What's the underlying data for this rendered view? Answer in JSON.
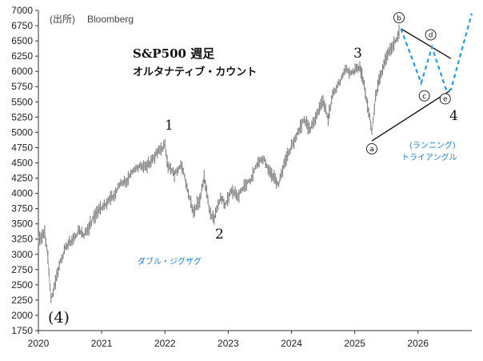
{
  "source_label": "(出所)",
  "source_name": "Bloomberg",
  "chart_data": {
    "type": "line",
    "title": "S&P500 週足",
    "subtitle": "オルタナティブ・カウント",
    "x_ticks": [
      "2020",
      "2021",
      "2022",
      "2023",
      "2024",
      "2025",
      "2026"
    ],
    "y_ticks": [
      1750,
      2000,
      2250,
      2500,
      2750,
      3000,
      3250,
      3500,
      3750,
      4000,
      4250,
      4500,
      4750,
      5000,
      5250,
      5500,
      5750,
      6000,
      6250,
      6500,
      6750,
      7000
    ],
    "xlim": [
      2020.0,
      2026.85
    ],
    "ylim": [
      1750,
      7000
    ],
    "series": [
      {
        "values": [
          [
            2020.0,
            3230
          ],
          [
            2020.1,
            3370
          ],
          [
            2020.15,
            2950
          ],
          [
            2020.2,
            2240
          ],
          [
            2020.25,
            2480
          ],
          [
            2020.35,
            2900
          ],
          [
            2020.45,
            3150
          ],
          [
            2020.55,
            3250
          ],
          [
            2020.65,
            3400
          ],
          [
            2020.72,
            3320
          ],
          [
            2020.8,
            3450
          ],
          [
            2020.9,
            3650
          ],
          [
            2021.0,
            3780
          ],
          [
            2021.1,
            3880
          ],
          [
            2021.2,
            3960
          ],
          [
            2021.3,
            4180
          ],
          [
            2021.4,
            4200
          ],
          [
            2021.5,
            4350
          ],
          [
            2021.6,
            4470
          ],
          [
            2021.7,
            4430
          ],
          [
            2021.8,
            4560
          ],
          [
            2021.9,
            4690
          ],
          [
            2022.0,
            4790
          ],
          [
            2022.05,
            4450
          ],
          [
            2022.15,
            4300
          ],
          [
            2022.25,
            4500
          ],
          [
            2022.35,
            4100
          ],
          [
            2022.45,
            3700
          ],
          [
            2022.55,
            3900
          ],
          [
            2022.62,
            4280
          ],
          [
            2022.72,
            3650
          ],
          [
            2022.78,
            3580
          ],
          [
            2022.88,
            3950
          ],
          [
            2022.95,
            3830
          ],
          [
            2023.05,
            4050
          ],
          [
            2023.15,
            3950
          ],
          [
            2023.25,
            4100
          ],
          [
            2023.35,
            4200
          ],
          [
            2023.45,
            4450
          ],
          [
            2023.55,
            4580
          ],
          [
            2023.65,
            4350
          ],
          [
            2023.8,
            4150
          ],
          [
            2023.9,
            4550
          ],
          [
            2024.0,
            4770
          ],
          [
            2024.1,
            5000
          ],
          [
            2024.2,
            5200
          ],
          [
            2024.3,
            5050
          ],
          [
            2024.4,
            5300
          ],
          [
            2024.5,
            5550
          ],
          [
            2024.58,
            5200
          ],
          [
            2024.65,
            5650
          ],
          [
            2024.75,
            5800
          ],
          [
            2024.85,
            6050
          ],
          [
            2024.95,
            5950
          ],
          [
            2025.08,
            6100
          ],
          [
            2025.15,
            5750
          ],
          [
            2025.22,
            5350
          ],
          [
            2025.27,
            4980
          ],
          [
            2025.33,
            5600
          ],
          [
            2025.4,
            5900
          ],
          [
            2025.5,
            6250
          ],
          [
            2025.6,
            6400
          ],
          [
            2025.7,
            6650
          ]
        ]
      }
    ],
    "annotations": {
      "waves": [
        "(4)",
        "1",
        "2",
        "3",
        "4"
      ],
      "points": [
        "a",
        "b",
        "c",
        "d",
        "e"
      ],
      "pattern_left": "ダブル・ジグザグ",
      "pattern_right_line1": "(ランニング)",
      "pattern_right_line2": "トライアングル"
    },
    "grid": false,
    "line_color": "#7a7a7a",
    "projection_color": "#2a98d6"
  }
}
